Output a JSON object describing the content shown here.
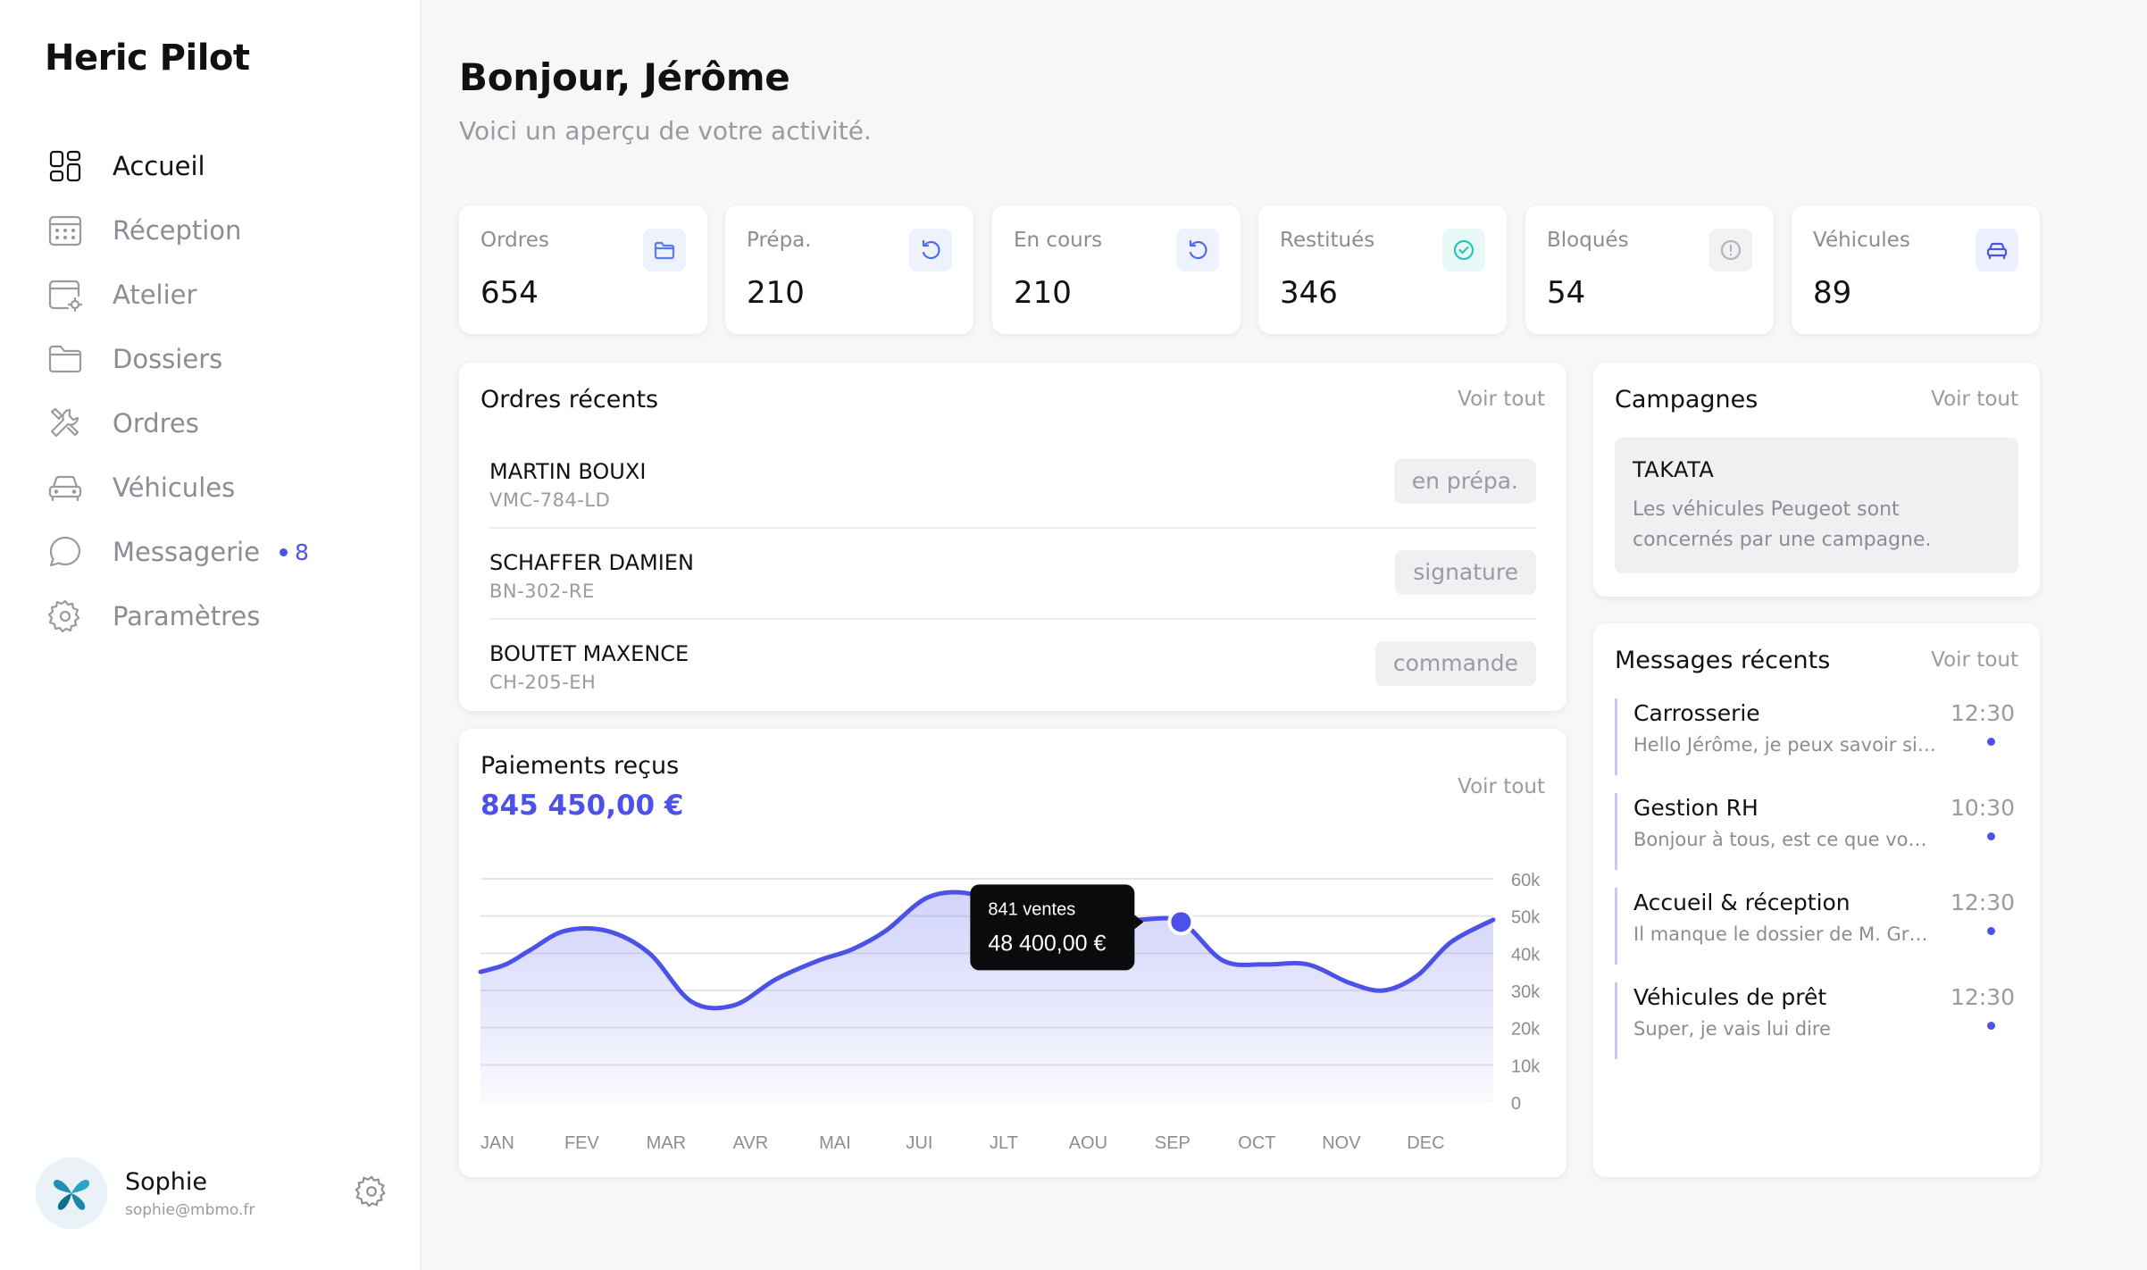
{
  "app": {
    "title": "Heric Pilot"
  },
  "sidebar": {
    "items": [
      {
        "label": "Accueil",
        "icon": "dashboard-icon",
        "active": true
      },
      {
        "label": "Réception",
        "icon": "calendar-icon",
        "active": false
      },
      {
        "label": "Atelier",
        "icon": "workshop-icon",
        "active": false
      },
      {
        "label": "Dossiers",
        "icon": "folder-icon",
        "active": false
      },
      {
        "label": "Ordres",
        "icon": "tools-icon",
        "active": false
      },
      {
        "label": "Véhicules",
        "icon": "car-icon",
        "active": false
      },
      {
        "label": "Messagerie",
        "icon": "chat-icon",
        "active": false,
        "badge": "8"
      },
      {
        "label": "Paramètres",
        "icon": "gear-icon",
        "active": false
      }
    ],
    "user": {
      "name": "Sophie",
      "email": "sophie@mbmo.fr"
    }
  },
  "header": {
    "greeting": "Bonjour, Jérôme",
    "subtitle": "Voici un aperçu de votre activité."
  },
  "stats": [
    {
      "label": "Ordres",
      "value": "654",
      "icon": "folder-icon",
      "color": "#5b7cf0",
      "bg": "#eef2fd"
    },
    {
      "label": "Prépa.",
      "value": "210",
      "icon": "refresh-icon",
      "color": "#4c6ce8",
      "bg": "#eef2fd"
    },
    {
      "label": "En cours",
      "value": "210",
      "icon": "refresh-icon",
      "color": "#4c6ce8",
      "bg": "#eef2fd"
    },
    {
      "label": "Restitués",
      "value": "346",
      "icon": "check-circle-icon",
      "color": "#27c3b6",
      "bg": "#e8f8f6"
    },
    {
      "label": "Bloqués",
      "value": "54",
      "icon": "info-icon",
      "color": "#b4b4bb",
      "bg": "#f2f2f4"
    },
    {
      "label": "Véhicules",
      "value": "89",
      "icon": "car-icon",
      "color": "#4c52e8",
      "bg": "#eeeffd"
    }
  ],
  "orders": {
    "title": "Ordres récents",
    "link": "Voir tout",
    "rows": [
      {
        "name": "MARTIN BOUXI",
        "plate": "VMC-784-LD",
        "status": "en prépa."
      },
      {
        "name": "SCHAFFER DAMIEN",
        "plate": "BN-302-RE",
        "status": "signature"
      },
      {
        "name": "BOUTET MAXENCE",
        "plate": "CH-205-EH",
        "status": "commande"
      }
    ]
  },
  "payments": {
    "title": "Paiements reçus",
    "amount": "845 450,00 €",
    "link": "Voir tout",
    "tooltip": {
      "line1": "841 ventes",
      "line2": "48 400,00 €"
    }
  },
  "campaigns": {
    "title": "Campagnes",
    "link": "Voir tout",
    "item": {
      "name": "TAKATA",
      "desc": "Les véhicules Peugeot sont concernés par une campagne."
    }
  },
  "messages": {
    "title": "Messages récents",
    "link": "Voir tout",
    "items": [
      {
        "title": "Carrosserie",
        "preview": "Hello Jérôme, je peux savoir si j...",
        "time": "12:30"
      },
      {
        "title": "Gestion RH",
        "preview": "Bonjour à tous, est ce que vous...",
        "time": "10:30"
      },
      {
        "title": "Accueil & réception",
        "preview": "Il manque le dossier de M. Grui...",
        "time": "12:30"
      },
      {
        "title": "Véhicules de prêt",
        "preview": "Super, je vais lui dire",
        "time": "12:30"
      }
    ]
  },
  "chart_data": {
    "type": "area",
    "title": "Paiements reçus",
    "categories": [
      "JAN",
      "FEV",
      "MAR",
      "AVR",
      "MAI",
      "JUI",
      "JLT",
      "AOU",
      "SEP",
      "OCT",
      "NOV",
      "DEC"
    ],
    "y_ticks": [
      "60k",
      "50k",
      "40k",
      "30k",
      "20k",
      "10k",
      "0"
    ],
    "ylim": [
      0,
      60000
    ],
    "x": [
      0,
      0.3,
      0.6,
      1.0,
      1.5,
      2.0,
      2.5,
      3.0,
      3.5,
      4.0,
      4.4,
      4.8,
      5.3,
      5.8,
      6.3,
      6.8,
      7.2,
      7.8,
      8.3,
      8.8,
      9.3,
      9.8,
      10.3,
      10.7,
      11.1,
      11.5,
      12
    ],
    "values": [
      35000,
      37000,
      41000,
      46000,
      46000,
      40000,
      27000,
      26000,
      33000,
      38000,
      41000,
      46000,
      55000,
      56000,
      51000,
      46000,
      48000,
      49000,
      48400,
      38000,
      37000,
      37000,
      32000,
      30000,
      34000,
      43000,
      49000
    ],
    "highlight": {
      "index": 18,
      "label": "841 ventes",
      "value": "48 400,00 €"
    },
    "line_color": "#4c52e8",
    "grid": true
  }
}
